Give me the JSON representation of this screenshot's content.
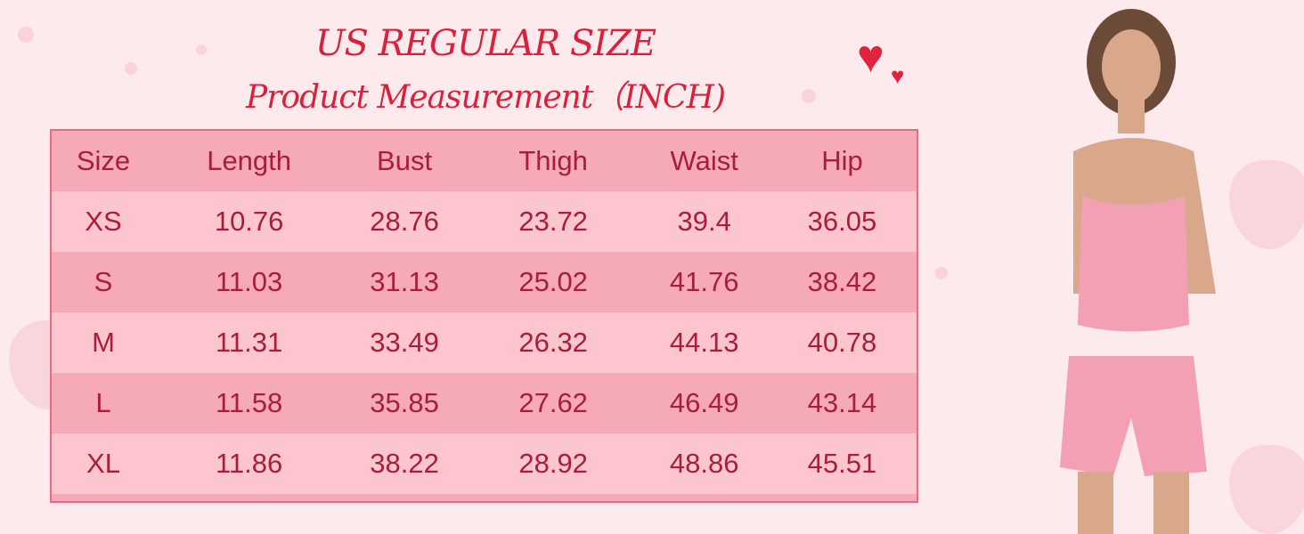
{
  "title": {
    "line1": "US REGULAR SIZE",
    "line2": "Product Measurement（INCH)"
  },
  "colors": {
    "background": "#fdeaec",
    "title": "#d9213d",
    "table_border": "#e56d83",
    "row_dark": "#f6a9b7",
    "row_light": "#fdc6cf",
    "text": "#a81e3a"
  },
  "decorations": {
    "icon": "hearts-icon",
    "image": "model-wearing-strawberry-pajama-set"
  },
  "table": {
    "headers": [
      "Size",
      "Length",
      "Bust",
      "Thigh",
      "Waist",
      "Hip"
    ],
    "rows": [
      [
        "XS",
        "10.76",
        "28.76",
        "23.72",
        "39.4",
        "36.05"
      ],
      [
        "S",
        "11.03",
        "31.13",
        "25.02",
        "41.76",
        "38.42"
      ],
      [
        "M",
        "11.31",
        "33.49",
        "26.32",
        "44.13",
        "40.78"
      ],
      [
        "L",
        "11.58",
        "35.85",
        "27.62",
        "46.49",
        "43.14"
      ],
      [
        "XL",
        "11.86",
        "38.22",
        "28.92",
        "48.86",
        "45.51"
      ]
    ]
  }
}
